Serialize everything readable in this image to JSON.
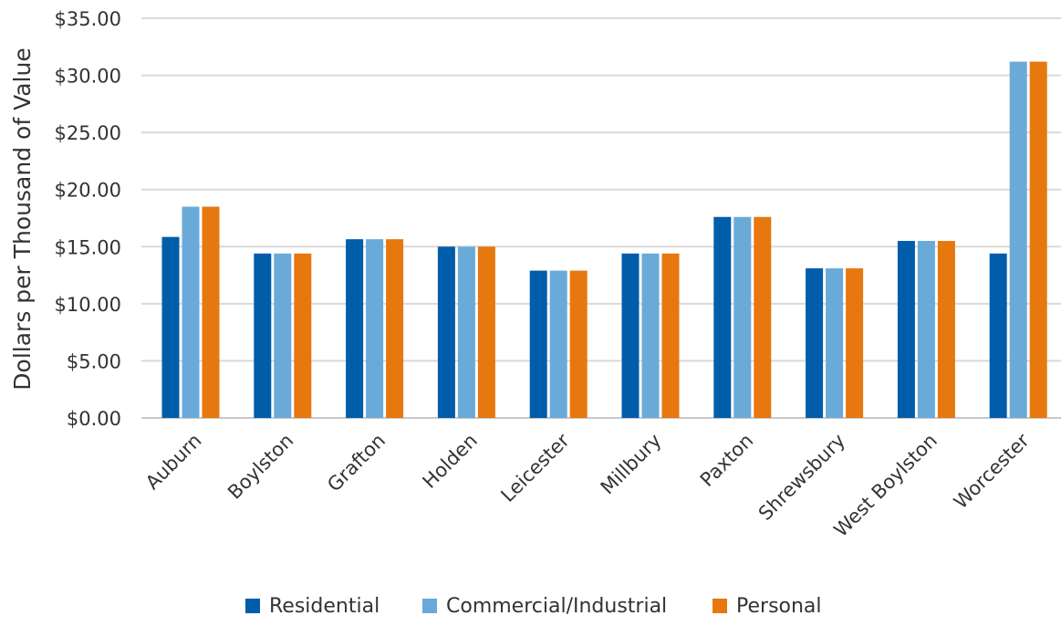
{
  "chart_data": {
    "type": "bar",
    "title": "",
    "xlabel": "",
    "ylabel": "Dollars per Thousand of Value",
    "ylim": [
      0,
      35
    ],
    "yticks": [
      "$0.00",
      "$5.00",
      "$10.00",
      "$15.00",
      "$20.00",
      "$25.00",
      "$30.00",
      "$35.00"
    ],
    "ytick_values": [
      0,
      5,
      10,
      15,
      20,
      25,
      30,
      35
    ],
    "grid": true,
    "legend_position": "bottom",
    "categories": [
      "Auburn",
      "Boylston",
      "Grafton",
      "Holden",
      "Leicester",
      "Millbury",
      "Paxton",
      "Shrewsbury",
      "West Boylston",
      "Worcester"
    ],
    "series": [
      {
        "name": "Residential",
        "color": "#005daa",
        "values": [
          15.85,
          14.4,
          15.65,
          15.0,
          12.9,
          14.4,
          17.6,
          13.1,
          15.5,
          14.4
        ]
      },
      {
        "name": "Commercial/Industrial",
        "color": "#6aaad9",
        "values": [
          18.5,
          14.4,
          15.65,
          15.0,
          12.9,
          14.4,
          17.6,
          13.1,
          15.5,
          31.2
        ]
      },
      {
        "name": "Personal",
        "color": "#e6780f",
        "values": [
          18.5,
          14.4,
          15.65,
          15.0,
          12.9,
          14.4,
          17.6,
          13.1,
          15.5,
          31.2
        ]
      }
    ]
  }
}
